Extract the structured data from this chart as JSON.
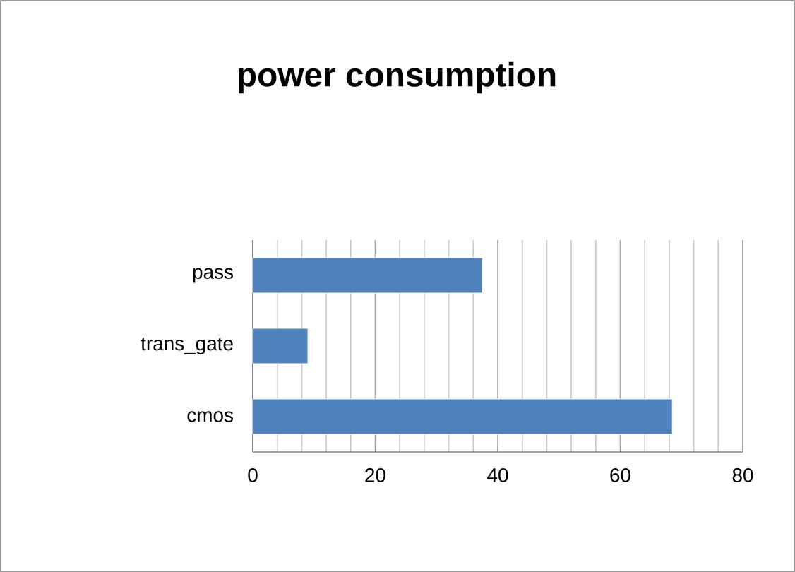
{
  "chart_data": {
    "type": "bar",
    "orientation": "horizontal",
    "title": "power consumption",
    "categories": [
      "pass",
      "trans_gate",
      "cmos"
    ],
    "values": [
      37.5,
      9,
      68.5
    ],
    "color": "#4f81bd",
    "xlim": [
      0,
      80
    ],
    "xticks": [
      0,
      20,
      40,
      60,
      80
    ],
    "grid": "x"
  }
}
